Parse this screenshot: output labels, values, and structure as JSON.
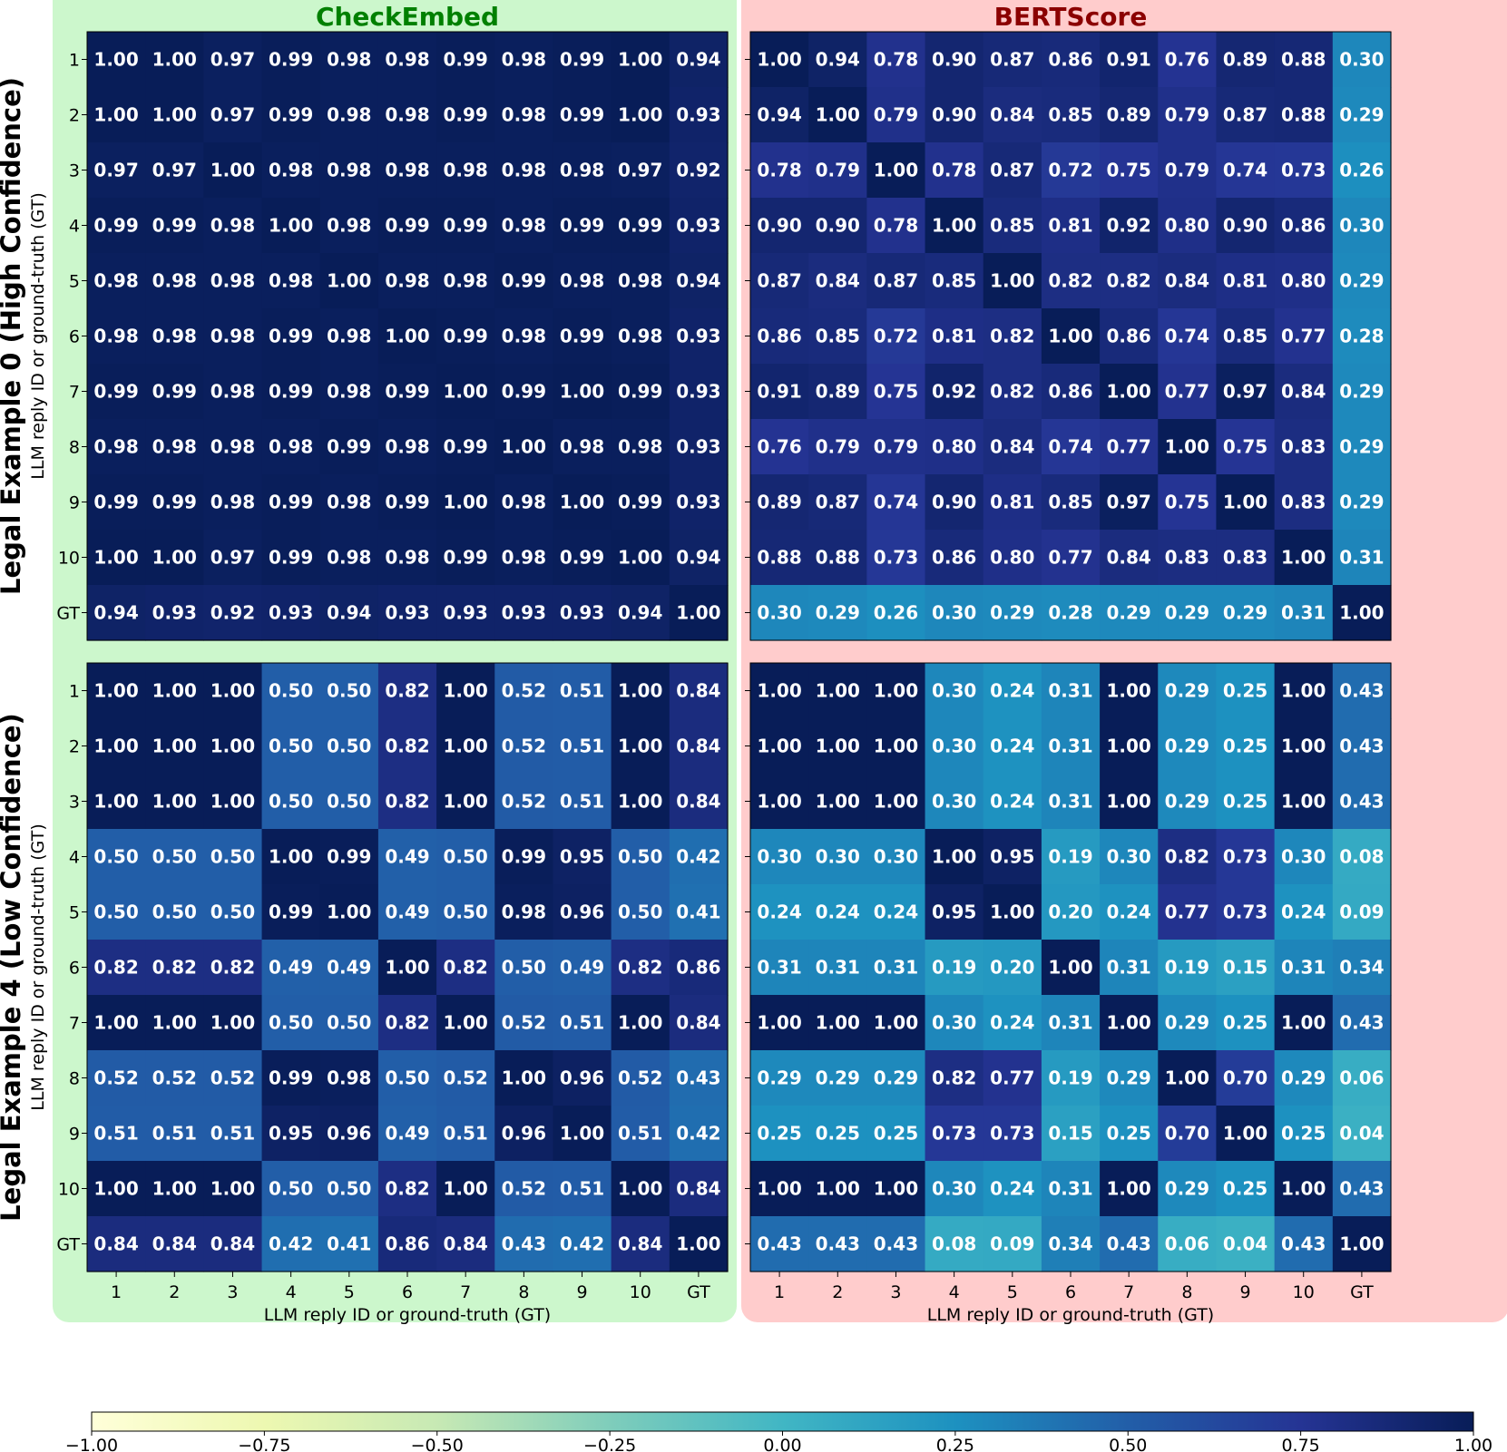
{
  "chart_data": {
    "type": "heatmap",
    "labels": [
      "1",
      "2",
      "3",
      "4",
      "5",
      "6",
      "7",
      "8",
      "9",
      "10",
      "GT"
    ],
    "xlabel": "LLM reply ID or ground-truth (GT)",
    "ylabel": "LLM reply ID or ground-truth (GT)",
    "colormap": "YlGnBu",
    "vmin": -1.0,
    "vmax": 1.0,
    "colorbar_ticks": [
      "−1.00",
      "−0.75",
      "−0.50",
      "−0.25",
      "0.00",
      "0.25",
      "0.50",
      "0.75",
      "1.00"
    ],
    "columns": [
      {
        "title": "CheckEmbed",
        "title_color": "#008000",
        "bg_color": "#ccf7cc"
      },
      {
        "title": "BERTScore",
        "title_color": "#8b0000",
        "bg_color": "#ffcccc"
      }
    ],
    "rows": [
      {
        "title": "Legal Example 0 (High Confidence)"
      },
      {
        "title": "Legal Example 4 (Low Confidence)"
      }
    ],
    "matrices": [
      [
        [
          [
            1.0,
            1.0,
            0.97,
            0.99,
            0.98,
            0.98,
            0.99,
            0.98,
            0.99,
            1.0,
            0.94
          ],
          [
            1.0,
            1.0,
            0.97,
            0.99,
            0.98,
            0.98,
            0.99,
            0.98,
            0.99,
            1.0,
            0.93
          ],
          [
            0.97,
            0.97,
            1.0,
            0.98,
            0.98,
            0.98,
            0.98,
            0.98,
            0.98,
            0.97,
            0.92
          ],
          [
            0.99,
            0.99,
            0.98,
            1.0,
            0.98,
            0.99,
            0.99,
            0.98,
            0.99,
            0.99,
            0.93
          ],
          [
            0.98,
            0.98,
            0.98,
            0.98,
            1.0,
            0.98,
            0.98,
            0.99,
            0.98,
            0.98,
            0.94
          ],
          [
            0.98,
            0.98,
            0.98,
            0.99,
            0.98,
            1.0,
            0.99,
            0.98,
            0.99,
            0.98,
            0.93
          ],
          [
            0.99,
            0.99,
            0.98,
            0.99,
            0.98,
            0.99,
            1.0,
            0.99,
            1.0,
            0.99,
            0.93
          ],
          [
            0.98,
            0.98,
            0.98,
            0.98,
            0.99,
            0.98,
            0.99,
            1.0,
            0.98,
            0.98,
            0.93
          ],
          [
            0.99,
            0.99,
            0.98,
            0.99,
            0.98,
            0.99,
            1.0,
            0.98,
            1.0,
            0.99,
            0.93
          ],
          [
            1.0,
            1.0,
            0.97,
            0.99,
            0.98,
            0.98,
            0.99,
            0.98,
            0.99,
            1.0,
            0.94
          ],
          [
            0.94,
            0.93,
            0.92,
            0.93,
            0.94,
            0.93,
            0.93,
            0.93,
            0.93,
            0.94,
            1.0
          ]
        ],
        [
          [
            1.0,
            0.94,
            0.78,
            0.9,
            0.87,
            0.86,
            0.91,
            0.76,
            0.89,
            0.88,
            0.3
          ],
          [
            0.94,
            1.0,
            0.79,
            0.9,
            0.84,
            0.85,
            0.89,
            0.79,
            0.87,
            0.88,
            0.29
          ],
          [
            0.78,
            0.79,
            1.0,
            0.78,
            0.87,
            0.72,
            0.75,
            0.79,
            0.74,
            0.73,
            0.26
          ],
          [
            0.9,
            0.9,
            0.78,
            1.0,
            0.85,
            0.81,
            0.92,
            0.8,
            0.9,
            0.86,
            0.3
          ],
          [
            0.87,
            0.84,
            0.87,
            0.85,
            1.0,
            0.82,
            0.82,
            0.84,
            0.81,
            0.8,
            0.29
          ],
          [
            0.86,
            0.85,
            0.72,
            0.81,
            0.82,
            1.0,
            0.86,
            0.74,
            0.85,
            0.77,
            0.28
          ],
          [
            0.91,
            0.89,
            0.75,
            0.92,
            0.82,
            0.86,
            1.0,
            0.77,
            0.97,
            0.84,
            0.29
          ],
          [
            0.76,
            0.79,
            0.79,
            0.8,
            0.84,
            0.74,
            0.77,
            1.0,
            0.75,
            0.83,
            0.29
          ],
          [
            0.89,
            0.87,
            0.74,
            0.9,
            0.81,
            0.85,
            0.97,
            0.75,
            1.0,
            0.83,
            0.29
          ],
          [
            0.88,
            0.88,
            0.73,
            0.86,
            0.8,
            0.77,
            0.84,
            0.83,
            0.83,
            1.0,
            0.31
          ],
          [
            0.3,
            0.29,
            0.26,
            0.3,
            0.29,
            0.28,
            0.29,
            0.29,
            0.29,
            0.31,
            1.0
          ]
        ]
      ],
      [
        [
          [
            1.0,
            1.0,
            1.0,
            0.5,
            0.5,
            0.82,
            1.0,
            0.52,
            0.51,
            1.0,
            0.84
          ],
          [
            1.0,
            1.0,
            1.0,
            0.5,
            0.5,
            0.82,
            1.0,
            0.52,
            0.51,
            1.0,
            0.84
          ],
          [
            1.0,
            1.0,
            1.0,
            0.5,
            0.5,
            0.82,
            1.0,
            0.52,
            0.51,
            1.0,
            0.84
          ],
          [
            0.5,
            0.5,
            0.5,
            1.0,
            0.99,
            0.49,
            0.5,
            0.99,
            0.95,
            0.5,
            0.42
          ],
          [
            0.5,
            0.5,
            0.5,
            0.99,
            1.0,
            0.49,
            0.5,
            0.98,
            0.96,
            0.5,
            0.41
          ],
          [
            0.82,
            0.82,
            0.82,
            0.49,
            0.49,
            1.0,
            0.82,
            0.5,
            0.49,
            0.82,
            0.86
          ],
          [
            1.0,
            1.0,
            1.0,
            0.5,
            0.5,
            0.82,
            1.0,
            0.52,
            0.51,
            1.0,
            0.84
          ],
          [
            0.52,
            0.52,
            0.52,
            0.99,
            0.98,
            0.5,
            0.52,
            1.0,
            0.96,
            0.52,
            0.43
          ],
          [
            0.51,
            0.51,
            0.51,
            0.95,
            0.96,
            0.49,
            0.51,
            0.96,
            1.0,
            0.51,
            0.42
          ],
          [
            1.0,
            1.0,
            1.0,
            0.5,
            0.5,
            0.82,
            1.0,
            0.52,
            0.51,
            1.0,
            0.84
          ],
          [
            0.84,
            0.84,
            0.84,
            0.42,
            0.41,
            0.86,
            0.84,
            0.43,
            0.42,
            0.84,
            1.0
          ]
        ],
        [
          [
            1.0,
            1.0,
            1.0,
            0.3,
            0.24,
            0.31,
            1.0,
            0.29,
            0.25,
            1.0,
            0.43
          ],
          [
            1.0,
            1.0,
            1.0,
            0.3,
            0.24,
            0.31,
            1.0,
            0.29,
            0.25,
            1.0,
            0.43
          ],
          [
            1.0,
            1.0,
            1.0,
            0.3,
            0.24,
            0.31,
            1.0,
            0.29,
            0.25,
            1.0,
            0.43
          ],
          [
            0.3,
            0.3,
            0.3,
            1.0,
            0.95,
            0.19,
            0.3,
            0.82,
            0.73,
            0.3,
            0.08
          ],
          [
            0.24,
            0.24,
            0.24,
            0.95,
            1.0,
            0.2,
            0.24,
            0.77,
            0.73,
            0.24,
            0.09
          ],
          [
            0.31,
            0.31,
            0.31,
            0.19,
            0.2,
            1.0,
            0.31,
            0.19,
            0.15,
            0.31,
            0.34
          ],
          [
            1.0,
            1.0,
            1.0,
            0.3,
            0.24,
            0.31,
            1.0,
            0.29,
            0.25,
            1.0,
            0.43
          ],
          [
            0.29,
            0.29,
            0.29,
            0.82,
            0.77,
            0.19,
            0.29,
            1.0,
            0.7,
            0.29,
            0.06
          ],
          [
            0.25,
            0.25,
            0.25,
            0.73,
            0.73,
            0.15,
            0.25,
            0.7,
            1.0,
            0.25,
            0.04
          ],
          [
            1.0,
            1.0,
            1.0,
            0.3,
            0.24,
            0.31,
            1.0,
            0.29,
            0.25,
            1.0,
            0.43
          ],
          [
            0.43,
            0.43,
            0.43,
            0.08,
            0.09,
            0.34,
            0.43,
            0.06,
            0.04,
            0.43,
            1.0
          ]
        ]
      ]
    ]
  }
}
